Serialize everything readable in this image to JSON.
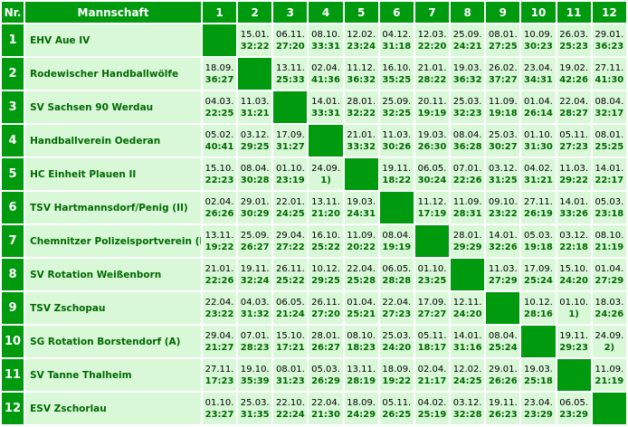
{
  "header": {
    "nr": "Nr.",
    "team": "Mannschaft",
    "cols": [
      "1",
      "2",
      "3",
      "4",
      "5",
      "6",
      "7",
      "8",
      "9",
      "10",
      "11",
      "12"
    ]
  },
  "rows": [
    {
      "nr": "1",
      "team": "EHV Aue IV",
      "cells": [
        null,
        {
          "d": "15.01.",
          "r": "32:22"
        },
        {
          "d": "06.11.",
          "r": "27:20"
        },
        {
          "d": "08.10.",
          "r": "33:31"
        },
        {
          "d": "12.02.",
          "r": "23:24"
        },
        {
          "d": "04.12.",
          "r": "31:18"
        },
        {
          "d": "12.03.",
          "r": "22:20"
        },
        {
          "d": "25.09.",
          "r": "24:21"
        },
        {
          "d": "08.01.",
          "r": "27:25"
        },
        {
          "d": "10.09.",
          "r": "30:23"
        },
        {
          "d": "26.03.",
          "r": "25:23"
        },
        {
          "d": "29.01.",
          "r": "36:23"
        }
      ]
    },
    {
      "nr": "2",
      "team": "Rodewischer Handballwölfe",
      "cells": [
        {
          "d": "18.09.",
          "r": "36:27"
        },
        null,
        {
          "d": "13.11.",
          "r": "25:33"
        },
        {
          "d": "02.04.",
          "r": "41:36"
        },
        {
          "d": "11.12.",
          "r": "36:32"
        },
        {
          "d": "16.10.",
          "r": "35:25"
        },
        {
          "d": "21.01.",
          "r": "28:22"
        },
        {
          "d": "19.03.",
          "r": "36:32"
        },
        {
          "d": "26.02.",
          "r": "37:27"
        },
        {
          "d": "23.04.",
          "r": "34:31"
        },
        {
          "d": "19.02.",
          "r": "42:26"
        },
        {
          "d": "27.11.",
          "r": "41:30"
        }
      ]
    },
    {
      "nr": "3",
      "team": "SV Sachsen 90 Werdau",
      "cells": [
        {
          "d": "04.03.",
          "r": "22:25"
        },
        {
          "d": "11.03.",
          "r": "31:21"
        },
        null,
        {
          "d": "14.01.",
          "r": "33:31"
        },
        {
          "d": "28.01.",
          "r": "32:22"
        },
        {
          "d": "25.09.",
          "r": "32:25"
        },
        {
          "d": "20.11.",
          "r": "19:19"
        },
        {
          "d": "25.03.",
          "r": "32:23"
        },
        {
          "d": "11.09.",
          "r": "19:18"
        },
        {
          "d": "01.04.",
          "r": "26:14"
        },
        {
          "d": "22.04.",
          "r": "28:27"
        },
        {
          "d": "08.04.",
          "r": "32:17"
        }
      ]
    },
    {
      "nr": "4",
      "team": "Handballverein Oederan",
      "cells": [
        {
          "d": "05.02.",
          "r": "40:41"
        },
        {
          "d": "03.12.",
          "r": "29:25"
        },
        {
          "d": "17.09.",
          "r": "31:27"
        },
        null,
        {
          "d": "21.01.",
          "r": "33:32"
        },
        {
          "d": "11.03.",
          "r": "30:26"
        },
        {
          "d": "19.03.",
          "r": "26:30"
        },
        {
          "d": "08.04.",
          "r": "36:28"
        },
        {
          "d": "25.03.",
          "r": "30:27"
        },
        {
          "d": "01.10.",
          "r": "31:30"
        },
        {
          "d": "05.11.",
          "r": "27:23"
        },
        {
          "d": "08.01.",
          "r": "25:25"
        }
      ]
    },
    {
      "nr": "5",
      "team": "HC Einheit Plauen II",
      "cells": [
        {
          "d": "15.10.",
          "r": "22:23"
        },
        {
          "d": "08.04.",
          "r": "30:28"
        },
        {
          "d": "01.10.",
          "r": "23:19"
        },
        {
          "d": "24.09.",
          "r": "1)"
        },
        null,
        {
          "d": "19.11.",
          "r": "18:22"
        },
        {
          "d": "06.05.",
          "r": "30:24"
        },
        {
          "d": "07.01.",
          "r": "22:26"
        },
        {
          "d": "03.12.",
          "r": "31:25"
        },
        {
          "d": "04.02.",
          "r": "31:21"
        },
        {
          "d": "11.03.",
          "r": "29:22"
        },
        {
          "d": "14.01.",
          "r": "22:17"
        }
      ]
    },
    {
      "nr": "6",
      "team": "TSV Hartmannsdorf/Penig (II)",
      "cells": [
        {
          "d": "02.04.",
          "r": "26:26"
        },
        {
          "d": "29.01.",
          "r": "30:29"
        },
        {
          "d": "22.01.",
          "r": "24:25"
        },
        {
          "d": "13.11.",
          "r": "21:20"
        },
        {
          "d": "19.03.",
          "r": "24:31"
        },
        null,
        {
          "d": "11.12.",
          "r": "17:19"
        },
        {
          "d": "11.09.",
          "r": "28:31"
        },
        {
          "d": "09.10.",
          "r": "23:22"
        },
        {
          "d": "27.11.",
          "r": "26:19"
        },
        {
          "d": "14.01.",
          "r": "33:26"
        },
        {
          "d": "05.03.",
          "r": "23:18"
        }
      ]
    },
    {
      "nr": "7",
      "team": "Chemnitzer Polizeisportverein (II)",
      "cells": [
        {
          "d": "13.11.",
          "r": "19:22"
        },
        {
          "d": "25.09.",
          "r": "26:27"
        },
        {
          "d": "29.04.",
          "r": "27:22"
        },
        {
          "d": "16.10.",
          "r": "25:22"
        },
        {
          "d": "11.09.",
          "r": "20:22"
        },
        {
          "d": "08.04.",
          "r": "19:19"
        },
        null,
        {
          "d": "28.01.",
          "r": "29:29"
        },
        {
          "d": "14.01.",
          "r": "32:26"
        },
        {
          "d": "05.03.",
          "r": "19:18"
        },
        {
          "d": "03.12.",
          "r": "22:18"
        },
        {
          "d": "08.10.",
          "r": "21:19"
        }
      ]
    },
    {
      "nr": "8",
      "team": "SV Rotation Weißenborn",
      "cells": [
        {
          "d": "21.01.",
          "r": "22:26"
        },
        {
          "d": "19.11.",
          "r": "32:24"
        },
        {
          "d": "26.11.",
          "r": "25:22"
        },
        {
          "d": "10.12.",
          "r": "29:25"
        },
        {
          "d": "22.04.",
          "r": "25:28"
        },
        {
          "d": "06.05.",
          "r": "28:28"
        },
        {
          "d": "01.10.",
          "r": "23:25"
        },
        null,
        {
          "d": "11.03.",
          "r": "27:29"
        },
        {
          "d": "17.09.",
          "r": "25:24"
        },
        {
          "d": "15.10.",
          "r": "24:20"
        },
        {
          "d": "01.04.",
          "r": "27:29"
        }
      ]
    },
    {
      "nr": "9",
      "team": "TSV Zschopau",
      "cells": [
        {
          "d": "22.04.",
          "r": "23:22"
        },
        {
          "d": "04.03.",
          "r": "31:32"
        },
        {
          "d": "06.05.",
          "r": "21:24"
        },
        {
          "d": "26.11.",
          "r": "27:20"
        },
        {
          "d": "01.04.",
          "r": "25:21"
        },
        {
          "d": "22.04.",
          "r": "27:23"
        },
        {
          "d": "17.09.",
          "r": "27:27"
        },
        {
          "d": "12.11.",
          "r": "24:20"
        },
        null,
        {
          "d": "10.12.",
          "r": "28:16"
        },
        {
          "d": "01.10.",
          "r": "1)"
        },
        {
          "d": "18.03.",
          "r": "24:26"
        }
      ]
    },
    {
      "nr": "10",
      "team": "SG Rotation Borstendorf (A)",
      "cells": [
        {
          "d": "29.04.",
          "r": "21:27"
        },
        {
          "d": "07.01.",
          "r": "28:23"
        },
        {
          "d": "15.10.",
          "r": "17:21"
        },
        {
          "d": "28.01.",
          "r": "26:27"
        },
        {
          "d": "08.10.",
          "r": "18:23"
        },
        {
          "d": "25.03.",
          "r": "24:20"
        },
        {
          "d": "05.11.",
          "r": "18:17"
        },
        {
          "d": "14.01.",
          "r": "31:16"
        },
        {
          "d": "08.04.",
          "r": "25:24"
        },
        null,
        {
          "d": "19.11.",
          "r": "29:23"
        },
        {
          "d": "24.09.",
          "r": "2)"
        }
      ]
    },
    {
      "nr": "11",
      "team": "SV Tanne Thalheim",
      "cells": [
        {
          "d": "27.11.",
          "r": "17:23"
        },
        {
          "d": "19.10.",
          "r": "35:39"
        },
        {
          "d": "08.01.",
          "r": "31:23"
        },
        {
          "d": "05.03.",
          "r": "26:29"
        },
        {
          "d": "13.11.",
          "r": "28:19"
        },
        {
          "d": "18.09.",
          "r": "19:22"
        },
        {
          "d": "02.04.",
          "r": "21:17"
        },
        {
          "d": "12.02.",
          "r": "24:25"
        },
        {
          "d": "29.01.",
          "r": "26:26"
        },
        {
          "d": "19.03.",
          "r": "25:18"
        },
        null,
        {
          "d": "11.09.",
          "r": "21:19"
        }
      ]
    },
    {
      "nr": "12",
      "team": "ESV Zschorlau",
      "cells": [
        {
          "d": "01.10.",
          "r": "23:27"
        },
        {
          "d": "25.03.",
          "r": "31:35"
        },
        {
          "d": "22.10.",
          "r": "22:24"
        },
        {
          "d": "22.04.",
          "r": "21:30"
        },
        {
          "d": "18.09.",
          "r": "24:29"
        },
        {
          "d": "05.11.",
          "r": "26:25"
        },
        {
          "d": "04.02.",
          "r": "25:19"
        },
        {
          "d": "03.12.",
          "r": "32:28"
        },
        {
          "d": "19.11.",
          "r": "26:23"
        },
        {
          "d": "23.04.",
          "r": "23:29"
        },
        {
          "d": "06.05.",
          "r": "23:29"
        },
        null
      ]
    }
  ],
  "colors": {
    "header_bg": "#009a0e",
    "cell_bg": "#d8f8d8",
    "text_green": "#006a00"
  }
}
